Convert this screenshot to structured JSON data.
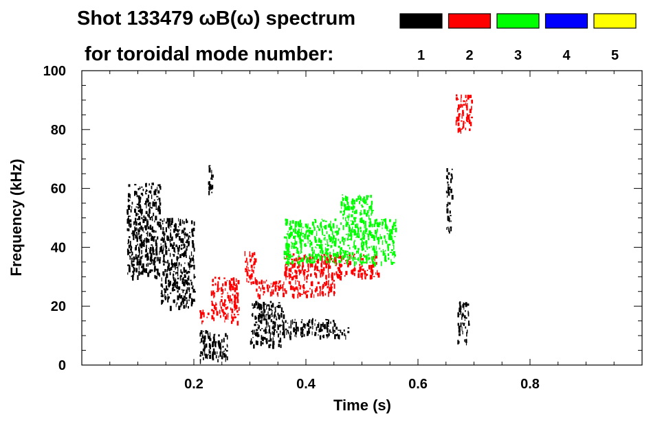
{
  "chart_data": {
    "type": "spectrogram",
    "title_line1": "Shot 133479 ωB(ω) spectrum",
    "title_line2": "for toroidal mode number:",
    "xlabel": "Time (s)",
    "ylabel": "Frequency (kHz)",
    "xlim": [
      0.0,
      1.0
    ],
    "ylim": [
      0,
      100
    ],
    "x_ticks": [
      0.2,
      0.4,
      0.6,
      0.8
    ],
    "x_tick_labels": [
      "0.2",
      "0.4",
      "0.6",
      "0.8"
    ],
    "y_ticks": [
      0,
      20,
      40,
      60,
      80,
      100
    ],
    "y_tick_labels": [
      "0",
      "20",
      "40",
      "60",
      "80",
      "100"
    ],
    "legend": [
      {
        "mode": "1",
        "color": "#000000"
      },
      {
        "mode": "2",
        "color": "#ff0000"
      },
      {
        "mode": "3",
        "color": "#00ff00"
      },
      {
        "mode": "4",
        "color": "#0000ff"
      },
      {
        "mode": "5",
        "color": "#ffff00"
      }
    ],
    "series": [
      {
        "mode": "1",
        "color": "#000000",
        "regions": [
          {
            "t0": 0.08,
            "t1": 0.14,
            "f0": 30,
            "f1": 62
          },
          {
            "t0": 0.14,
            "t1": 0.2,
            "f0": 20,
            "f1": 50
          },
          {
            "t0": 0.21,
            "t1": 0.26,
            "f0": 2,
            "f1": 12
          },
          {
            "t0": 0.225,
            "t1": 0.235,
            "f0": 58,
            "f1": 68
          },
          {
            "t0": 0.3,
            "t1": 0.36,
            "f0": 7,
            "f1": 22
          },
          {
            "t0": 0.36,
            "t1": 0.45,
            "f0": 10,
            "f1": 16
          },
          {
            "t0": 0.45,
            "t1": 0.475,
            "f0": 10,
            "f1": 13
          },
          {
            "t0": 0.65,
            "t1": 0.66,
            "f0": 45,
            "f1": 68
          },
          {
            "t0": 0.67,
            "t1": 0.69,
            "f0": 8,
            "f1": 22
          }
        ]
      },
      {
        "mode": "2",
        "color": "#ff0000",
        "regions": [
          {
            "t0": 0.21,
            "t1": 0.225,
            "f0": 15,
            "f1": 19
          },
          {
            "t0": 0.23,
            "t1": 0.28,
            "f0": 15,
            "f1": 30
          },
          {
            "t0": 0.29,
            "t1": 0.31,
            "f0": 28,
            "f1": 40
          },
          {
            "t0": 0.31,
            "t1": 0.45,
            "f0": 24,
            "f1": 29
          },
          {
            "t0": 0.36,
            "t1": 0.53,
            "f0": 30,
            "f1": 38
          },
          {
            "t0": 0.665,
            "t1": 0.695,
            "f0": 80,
            "f1": 92
          }
        ]
      },
      {
        "mode": "3",
        "color": "#00ff00",
        "regions": [
          {
            "t0": 0.36,
            "t1": 0.56,
            "f0": 35,
            "f1": 50
          },
          {
            "t0": 0.46,
            "t1": 0.52,
            "f0": 50,
            "f1": 58
          }
        ]
      },
      {
        "mode": "4",
        "color": "#0000ff",
        "regions": []
      },
      {
        "mode": "5",
        "color": "#ffff00",
        "regions": []
      }
    ]
  }
}
